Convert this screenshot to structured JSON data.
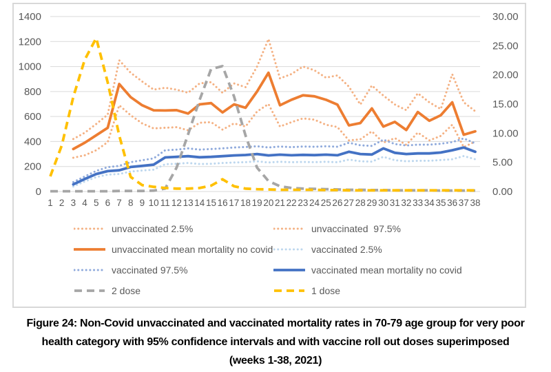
{
  "caption": {
    "lines": [
      "Figure 24: Non-Covid unvaccinated and vaccinated mortality rates in 70-79 age group for very poor",
      "health category with 95% confidence intervals and with vaccine roll out doses superimposed",
      "(weeks 1-38, 2021)"
    ]
  },
  "colors": {
    "grid": "#d9d9d9",
    "axis_text": "#595959",
    "unvaccinated_ci": "#F4B183",
    "unvaccinated_mean": "#ED7D31",
    "vaccinated_ci_lower": "#BDD7EE",
    "vaccinated_ci_upper": "#8FAADC",
    "vaccinated_mean": "#4472C4",
    "dose2": "#A6A6A6",
    "dose1": "#FFC000"
  },
  "legend": {
    "items": [
      {
        "label": "unvaccinated 2.5%",
        "color": "#F4B183",
        "style": "dot"
      },
      {
        "label": "unvaccinated  97.5%",
        "color": "#F4B183",
        "style": "dot"
      },
      {
        "label": "unvaccinated mean mortality no covid",
        "color": "#ED7D31",
        "style": "solid"
      },
      {
        "label": "vaccinated 2.5%",
        "color": "#BDD7EE",
        "style": "dot"
      },
      {
        "label": "vaccinated 97.5%",
        "color": "#8FAADC",
        "style": "dot"
      },
      {
        "label": "vaccinated mean mortality no covid",
        "color": "#4472C4",
        "style": "solid"
      },
      {
        "label": "2 dose",
        "color": "#A6A6A6",
        "style": "dash"
      },
      {
        "label": "1 dose",
        "color": "#FFC000",
        "style": "dash"
      }
    ]
  },
  "chart_data": {
    "type": "line",
    "x": [
      1,
      2,
      3,
      4,
      5,
      6,
      7,
      8,
      9,
      10,
      11,
      12,
      13,
      14,
      15,
      16,
      17,
      18,
      19,
      20,
      21,
      22,
      23,
      24,
      25,
      26,
      27,
      28,
      29,
      30,
      31,
      32,
      33,
      34,
      35,
      36,
      37,
      38
    ],
    "left_axis": {
      "range": [
        0,
        1400
      ],
      "ticks": [
        0,
        200,
        400,
        600,
        800,
        1000,
        1200,
        1400
      ],
      "labels": [
        "0",
        "200",
        "400",
        "600",
        "800",
        "1000",
        "1200",
        "1400"
      ]
    },
    "right_axis": {
      "range": [
        0,
        30
      ],
      "ticks": [
        0,
        5,
        10,
        15,
        20,
        25,
        30
      ],
      "labels": [
        "0.00",
        "5.00",
        "10.00",
        "15.00",
        "20.00",
        "25.00",
        "30.00"
      ]
    },
    "grid": true,
    "legend_position": "bottom",
    "series": [
      {
        "name": "unvaccinated 2.5%",
        "axis": "left",
        "style": "dot",
        "color": "#F4B183",
        "values": [
          null,
          null,
          270,
          290,
          330,
          395,
          690,
          610,
          545,
          505,
          510,
          515,
          490,
          550,
          555,
          495,
          545,
          520,
          640,
          700,
          520,
          555,
          585,
          575,
          534,
          516,
          409,
          418,
          481,
          391,
          427,
          373,
          472,
          409,
          445,
          534,
          355,
          400
        ]
      },
      {
        "name": "unvaccinated  97.5%",
        "axis": "left",
        "style": "dot",
        "color": "#F4B183",
        "values": [
          null,
          null,
          420,
          470,
          540,
          615,
          1050,
          950,
          880,
          815,
          830,
          815,
          790,
          865,
          875,
          790,
          865,
          835,
          1000,
          1220,
          905,
          940,
          1000,
          970,
          911,
          929,
          839,
          696,
          848,
          768,
          696,
          651,
          786,
          714,
          660,
          938,
          714,
          642
        ]
      },
      {
        "name": "vaccinated 2.5%",
        "axis": "left",
        "style": "dot",
        "color": "#BDD7EE",
        "values": [
          null,
          null,
          40,
          80,
          115,
          135,
          140,
          160,
          168,
          175,
          218,
          222,
          228,
          220,
          222,
          228,
          232,
          235,
          242,
          232,
          238,
          234,
          237,
          235,
          238,
          234,
          255,
          242,
          239,
          278,
          250,
          242,
          246,
          246,
          252,
          258,
          284,
          258
        ]
      },
      {
        "name": "vaccinated 97.5%",
        "axis": "left",
        "style": "dot",
        "color": "#8FAADC",
        "values": [
          null,
          null,
          75,
          120,
          165,
          195,
          205,
          235,
          250,
          265,
          330,
          335,
          345,
          335,
          340,
          345,
          352,
          356,
          362,
          352,
          360,
          355,
          360,
          358,
          362,
          358,
          390,
          370,
          365,
          415,
          380,
          368,
          375,
          375,
          382,
          395,
          425,
          385
        ]
      },
      {
        "name": "unvaccinated mean mortality no covid",
        "axis": "left",
        "style": "solid",
        "color": "#ED7D31",
        "values": [
          null,
          null,
          340,
          390,
          450,
          510,
          860,
          755,
          690,
          650,
          648,
          651,
          624,
          697,
          707,
          633,
          697,
          670,
          800,
          950,
          690,
          734,
          770,
          762,
          734,
          695,
          529,
          548,
          665,
          520,
          557,
          492,
          636,
          566,
          610,
          714,
          454,
          481
        ]
      },
      {
        "name": "vaccinated mean mortality no covid",
        "axis": "left",
        "style": "solid",
        "color": "#4472C4",
        "values": [
          null,
          null,
          57,
          100,
          140,
          163,
          170,
          196,
          205,
          215,
          273,
          277,
          283,
          274,
          277,
          283,
          289,
          292,
          300,
          289,
          295,
          290,
          293,
          291,
          295,
          290,
          318,
          300,
          296,
          345,
          310,
          300,
          305,
          305,
          312,
          330,
          352,
          318
        ]
      },
      {
        "name": "2 dose",
        "axis": "right",
        "style": "dash",
        "color": "#A6A6A6",
        "values": [
          0.05,
          0.05,
          0.05,
          0.05,
          0.05,
          0.05,
          0.1,
          0.1,
          0.1,
          0.15,
          0.5,
          4.1,
          9.8,
          15.7,
          21.0,
          21.5,
          16.3,
          9.6,
          4.1,
          1.8,
          0.9,
          0.6,
          0.5,
          0.45,
          0.4,
          0.35,
          0.3,
          0.3,
          0.25,
          0.25,
          0.2,
          0.2,
          0.2,
          0.2,
          0.15,
          0.15,
          0.15,
          0.15
        ]
      },
      {
        "name": "1 dose",
        "axis": "right",
        "style": "dash",
        "color": "#FFC000",
        "values": [
          2.6,
          7.9,
          16.2,
          22.6,
          26.3,
          18.7,
          9.6,
          2.5,
          1.1,
          0.8,
          0.6,
          0.5,
          0.5,
          0.6,
          1.0,
          2.1,
          0.9,
          0.5,
          0.4,
          0.35,
          0.3,
          0.3,
          0.3,
          0.3,
          0.25,
          0.25,
          0.2,
          0.2,
          0.2,
          0.2,
          0.2,
          0.2,
          0.2,
          0.2,
          0.2,
          0.2,
          0.2,
          0.2
        ]
      }
    ]
  }
}
